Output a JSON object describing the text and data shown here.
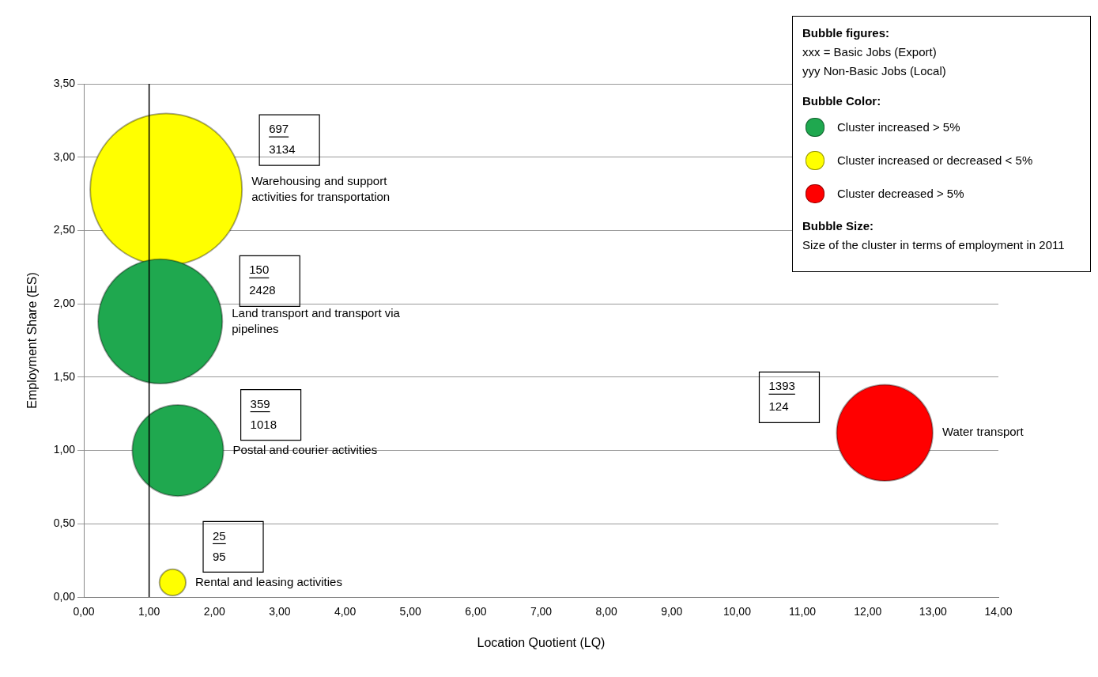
{
  "chart_data": {
    "type": "bubble",
    "xlabel": "Location Quotient (LQ)",
    "ylabel": "Employment Share (ES)",
    "xlim": [
      0,
      14
    ],
    "xticks": [
      {
        "value": 0,
        "label": "0,00"
      },
      {
        "value": 1,
        "label": "1,00"
      },
      {
        "value": 2,
        "label": "2,00"
      },
      {
        "value": 3,
        "label": "3,00"
      },
      {
        "value": 4,
        "label": "4,00"
      },
      {
        "value": 5,
        "label": "5,00"
      },
      {
        "value": 6,
        "label": "6,00"
      },
      {
        "value": 7,
        "label": "7,00"
      },
      {
        "value": 8,
        "label": "8,00"
      },
      {
        "value": 9,
        "label": "9,00"
      },
      {
        "value": 10,
        "label": "10,00"
      },
      {
        "value": 11,
        "label": "11,00"
      },
      {
        "value": 12,
        "label": "12,00"
      },
      {
        "value": 13,
        "label": "13,00"
      },
      {
        "value": 14,
        "label": "14,00"
      }
    ],
    "ylim": [
      0,
      3.5
    ],
    "yticks": [
      {
        "value": 0,
        "label": "0,00"
      },
      {
        "value": 0.5,
        "label": "0,50"
      },
      {
        "value": 1,
        "label": "1,00"
      },
      {
        "value": 1.5,
        "label": "1,50"
      },
      {
        "value": 2,
        "label": "2,00"
      },
      {
        "value": 2.5,
        "label": "2,50"
      },
      {
        "value": 3,
        "label": "3,00"
      },
      {
        "value": 3.5,
        "label": "3,50"
      }
    ],
    "grid": "y",
    "legend": "top right",
    "legend_title": "Bubble Color:",
    "series": [
      {
        "name": "Cluster increased  > 5%",
        "color": "#1fa84f",
        "x": [
          1.17,
          1.44
        ],
        "values": [
          1.88,
          1.0
        ],
        "sizes": [
          0.67,
          0.36
        ]
      },
      {
        "name": "Cluster increased or decreased < 5%",
        "color": "#ffff00",
        "x": [
          1.26,
          1.36
        ],
        "values": [
          2.78,
          0.1
        ],
        "sizes": [
          1.0,
          0.03
        ]
      },
      {
        "name": "Cluster decreased > 5%",
        "color": "#ff0000",
        "x": [
          12.26
        ],
        "values": [
          1.12
        ],
        "sizes": [
          0.4
        ]
      }
    ],
    "ref_lines": [
      {
        "axis": "x",
        "value": 1,
        "color": "#000000"
      }
    ],
    "annotations": [
      "Bubble figures:",
      "xxx = Basic Jobs (Export)",
      "yyy    Non-Basic Jobs (Local)",
      "Bubble Size:",
      "Size of the cluster in terms of employment in 2011",
      "150",
      "2428",
      "Land transport and transport via pipelines",
      "359",
      "1018",
      "Postal and courier activities",
      "697",
      "3134",
      "Warehousing and support activities for transportation",
      "25",
      "95",
      "Rental and leasing activities",
      "1393",
      "124",
      "Water transport"
    ]
  }
}
